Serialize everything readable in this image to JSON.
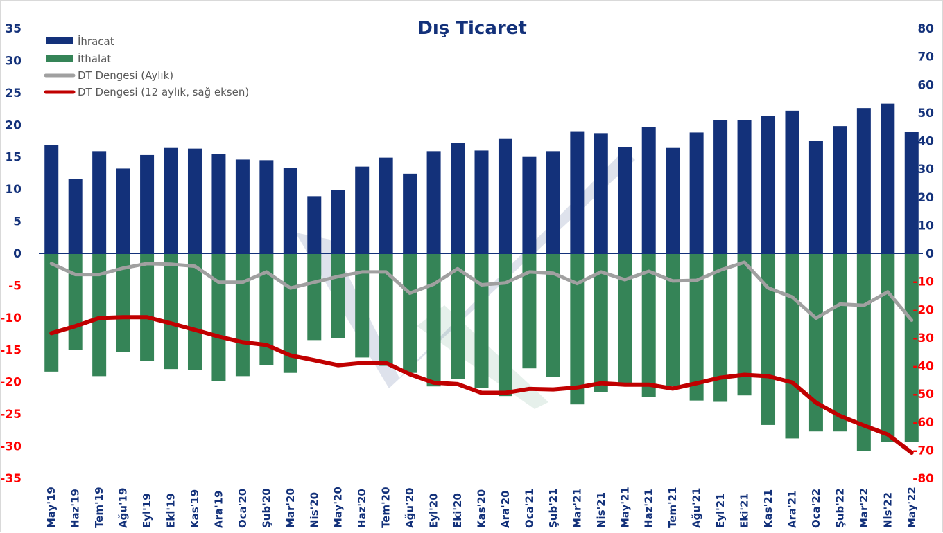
{
  "chart_data": {
    "type": "bar",
    "title": "Dış Ticaret",
    "xlabel": "",
    "ylabel": "",
    "ylim": [
      -35,
      35
    ],
    "y2lim": [
      -80,
      80
    ],
    "yticks": [
      35,
      30,
      25,
      20,
      15,
      10,
      5,
      0,
      -5,
      -10,
      -15,
      -20,
      -25,
      -30,
      -35
    ],
    "y2ticks": [
      80,
      70,
      60,
      50,
      40,
      30,
      20,
      10,
      0,
      -10,
      -20,
      -30,
      -40,
      -50,
      -60,
      -70,
      -80
    ],
    "grid": false,
    "legend_position": "top-left",
    "categories": [
      "May'19",
      "Haz'19",
      "Tem'19",
      "Ağu'19",
      "Eyl'19",
      "Eki'19",
      "Kas'19",
      "Ara'19",
      "Oca'20",
      "Şub'20",
      "Mar'20",
      "Nis'20",
      "May'20",
      "Haz'20",
      "Tem'20",
      "Ağu'20",
      "Eyl'20",
      "Eki'20",
      "Kas'20",
      "Ara'20",
      "Oca'21",
      "Şub'21",
      "Mar'21",
      "Nis'21",
      "May'21",
      "Haz'21",
      "Tem'21",
      "Ağu'21",
      "Eyl'21",
      "Eki'21",
      "Kas'21",
      "Ara'21",
      "Oca'22",
      "Şub'22",
      "Mar'22",
      "Nis'22",
      "May'22"
    ],
    "series": [
      {
        "name": "İhracat",
        "type": "bar",
        "axis": "left",
        "color": "#13317a",
        "values": [
          16.8,
          11.6,
          15.9,
          13.2,
          15.3,
          16.4,
          16.3,
          15.4,
          14.6,
          14.5,
          13.3,
          8.9,
          9.9,
          13.5,
          14.9,
          12.4,
          15.9,
          17.2,
          16.0,
          17.8,
          15.0,
          15.9,
          19.0,
          18.7,
          16.5,
          19.7,
          16.4,
          18.8,
          20.7,
          20.7,
          21.4,
          22.2,
          17.5,
          19.8,
          22.6,
          23.3,
          18.9
        ]
      },
      {
        "name": "İthalat",
        "type": "bar",
        "axis": "left",
        "color": "#358457",
        "values": [
          -18.4,
          -15.0,
          -19.1,
          -15.4,
          -16.8,
          -18.0,
          -18.1,
          -19.9,
          -19.1,
          -17.4,
          -18.6,
          -13.5,
          -13.2,
          -16.2,
          -17.5,
          -18.6,
          -20.7,
          -19.6,
          -21.0,
          -22.2,
          -17.9,
          -19.2,
          -23.5,
          -21.6,
          -20.5,
          -22.4,
          -20.7,
          -22.9,
          -23.1,
          -22.1,
          -26.7,
          -28.8,
          -27.7,
          -27.7,
          -30.7,
          -29.3,
          -29.4
        ]
      },
      {
        "name": "DT Dengesi (Aylık)",
        "type": "line",
        "axis": "left",
        "color": "#a0a0a0",
        "values": [
          -1.6,
          -3.3,
          -3.3,
          -2.3,
          -1.6,
          -1.7,
          -2.0,
          -4.5,
          -4.5,
          -2.9,
          -5.4,
          -4.5,
          -3.6,
          -2.9,
          -2.9,
          -6.2,
          -4.8,
          -2.4,
          -4.9,
          -4.6,
          -2.9,
          -3.1,
          -4.7,
          -2.9,
          -4.1,
          -2.8,
          -4.3,
          -4.2,
          -2.6,
          -1.4,
          -5.4,
          -6.8,
          -10.1,
          -7.9,
          -8.1,
          -6.0,
          -10.4
        ]
      },
      {
        "name": "DT Dengesi (12 aylık, sağ eksen)",
        "type": "line",
        "axis": "right",
        "color": "#c00000",
        "values": [
          -28.4,
          -25.9,
          -23.0,
          -22.7,
          -22.7,
          -24.9,
          -27.2,
          -29.6,
          -31.6,
          -32.6,
          -36.3,
          -38.0,
          -39.8,
          -39.0,
          -39.0,
          -43.0,
          -46.0,
          -46.5,
          -49.6,
          -49.6,
          -48.2,
          -48.4,
          -47.7,
          -46.2,
          -46.7,
          -46.7,
          -48.1,
          -46.2,
          -44.2,
          -43.2,
          -43.7,
          -45.9,
          -53.1,
          -57.8,
          -61.2,
          -64.4,
          -70.9
        ]
      }
    ],
    "axis_colors": {
      "positive": "#13317a",
      "negative": "#ff0000"
    }
  }
}
